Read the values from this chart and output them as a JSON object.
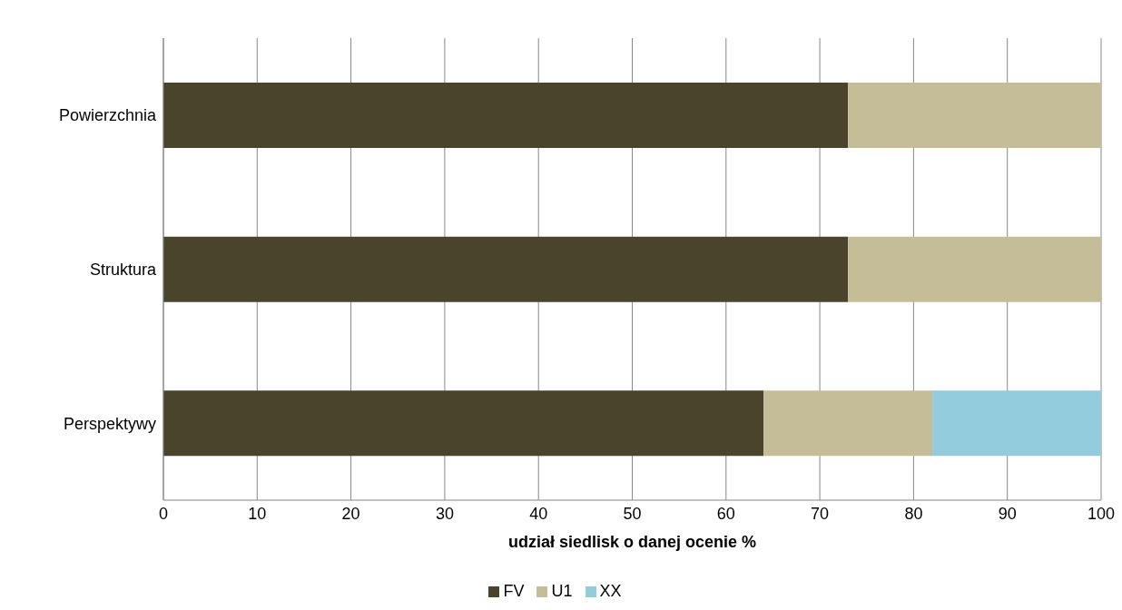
{
  "chart_data": {
    "type": "bar",
    "orientation": "horizontal",
    "stacked": true,
    "categories": [
      "Powierzchnia",
      "Struktura",
      "Perspektywy"
    ],
    "series": [
      {
        "name": "FV",
        "color": "#4a442d",
        "values": [
          73,
          73,
          64
        ]
      },
      {
        "name": "U1",
        "color": "#c4bd97",
        "values": [
          27,
          27,
          18
        ]
      },
      {
        "name": "XX",
        "color": "#93cddd",
        "values": [
          null,
          null,
          18
        ]
      }
    ],
    "xlabel": "udział siedlisk o danej ocenie %",
    "xlim": [
      0,
      100
    ],
    "xticks": [
      0,
      10,
      20,
      30,
      40,
      50,
      60,
      70,
      80,
      90,
      100
    ],
    "grid": "x",
    "legend": "bottom"
  }
}
